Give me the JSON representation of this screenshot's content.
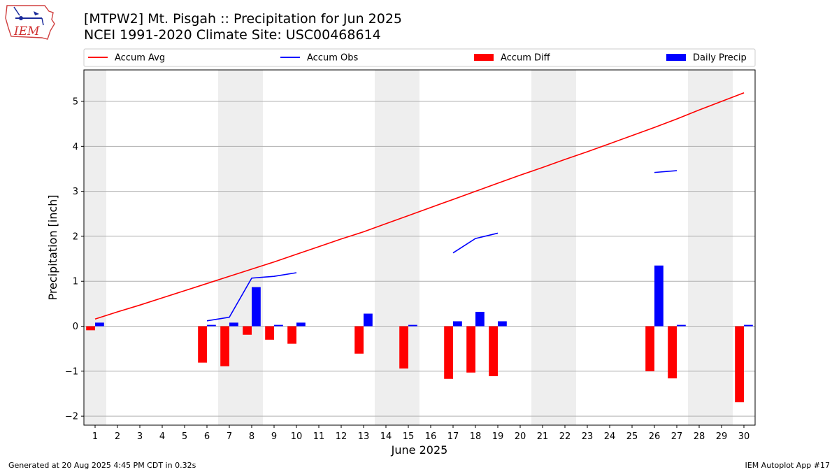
{
  "header": {
    "title_line1": "[MTPW2] Mt. Pisgah :: Precipitation for Jun 2025",
    "title_line2": "NCEI 1991-2020 Climate Site: USC00468614",
    "logo_text": "IEM"
  },
  "footer": {
    "generated": "Generated at 20 Aug 2025 4:45 PM CDT in 0.32s",
    "app": "IEM Autoplot App #17"
  },
  "chart_data": {
    "type": "bar",
    "xlabel": "June 2025",
    "ylabel": "Precipitation [inch]",
    "xlim": [
      0.5,
      30.5
    ],
    "ylim": [
      -2.2,
      5.7
    ],
    "yticks": [
      -2,
      -1,
      0,
      1,
      2,
      3,
      4,
      5
    ],
    "ytick_labels": [
      "−2",
      "−1",
      "0",
      "1",
      "2",
      "3",
      "4",
      "5"
    ],
    "xticks": [
      1,
      2,
      3,
      4,
      5,
      6,
      7,
      8,
      9,
      10,
      11,
      12,
      13,
      14,
      15,
      16,
      17,
      18,
      19,
      20,
      21,
      22,
      23,
      24,
      25,
      26,
      27,
      28,
      29,
      30
    ],
    "grid": "horizontal",
    "legend_position": "top",
    "weekend_shading_days": [
      [
        1,
        1
      ],
      [
        7,
        8
      ],
      [
        14,
        15
      ],
      [
        21,
        22
      ],
      [
        28,
        29
      ]
    ],
    "series": [
      {
        "name": "Accum Avg",
        "kind": "line",
        "color": "#ff0000",
        "x": [
          1,
          2,
          3,
          4,
          5,
          6,
          7,
          8,
          9,
          10,
          11,
          12,
          13,
          14,
          15,
          16,
          17,
          18,
          19,
          20,
          21,
          22,
          23,
          24,
          25,
          26,
          27,
          28,
          29,
          30
        ],
        "values": [
          0.16,
          0.32,
          0.47,
          0.63,
          0.79,
          0.95,
          1.11,
          1.27,
          1.43,
          1.6,
          1.77,
          1.94,
          2.1,
          2.28,
          2.46,
          2.64,
          2.82,
          3.0,
          3.18,
          3.36,
          3.53,
          3.71,
          3.88,
          4.06,
          4.24,
          4.42,
          4.61,
          4.81,
          5.0,
          5.19
        ]
      },
      {
        "name": "Accum Obs",
        "kind": "line",
        "color": "#0000ff",
        "segments": [
          {
            "x": [
              6,
              7,
              8,
              9,
              10
            ],
            "values": [
              0.12,
              0.2,
              1.07,
              1.11,
              1.19
            ]
          },
          {
            "x": [
              17,
              18,
              19
            ],
            "values": [
              1.63,
              1.95,
              2.07
            ]
          },
          {
            "x": [
              26,
              27
            ],
            "values": [
              3.42,
              3.46
            ]
          }
        ]
      },
      {
        "name": "Accum Diff",
        "kind": "bar",
        "color": "#ff0000",
        "x": [
          1,
          6,
          7,
          8,
          9,
          10,
          13,
          15,
          17,
          18,
          19,
          26,
          27,
          30
        ],
        "values": [
          -0.09,
          -0.81,
          -0.89,
          -0.19,
          -0.3,
          -0.39,
          -0.61,
          -0.94,
          -1.17,
          -1.03,
          -1.11,
          -1.0,
          -1.16,
          -1.69
        ]
      },
      {
        "name": "Daily Precip",
        "kind": "bar",
        "color": "#0000ff",
        "x": [
          1,
          6,
          7,
          8,
          9,
          10,
          13,
          15,
          17,
          18,
          19,
          26,
          27,
          30
        ],
        "values": [
          0.08,
          0.03,
          0.08,
          0.87,
          0.03,
          0.08,
          0.28,
          0.03,
          0.11,
          0.32,
          0.11,
          1.35,
          0.03,
          0.03
        ]
      }
    ]
  }
}
